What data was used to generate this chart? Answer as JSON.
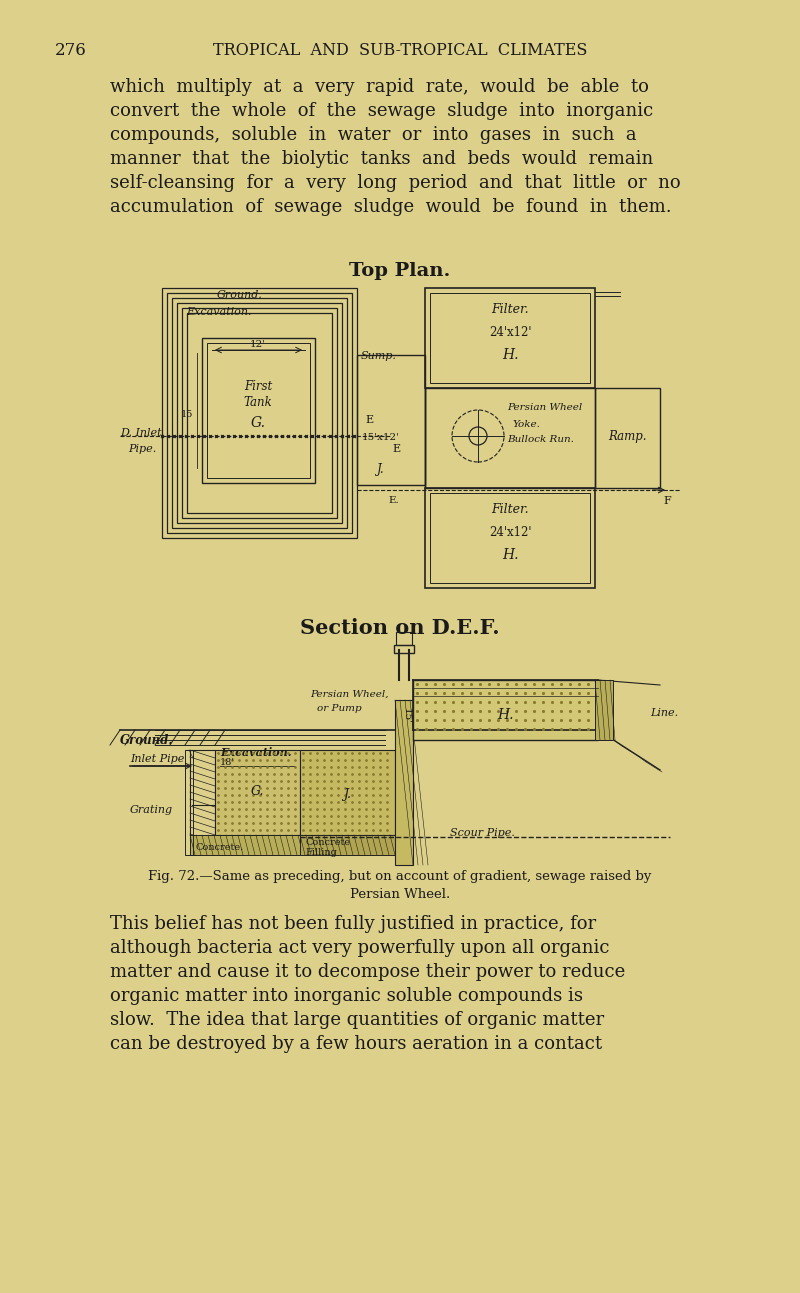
{
  "page_bg": "#ddd08a",
  "text_color": "#1a1a1a",
  "line_color": "#222222",
  "page_number": "276",
  "header": "TROPICAL  AND  SUB-TROPICAL  CLIMATES",
  "para1_lines": [
    "which  multiply  at  a  very  rapid  rate,  would  be  able  to",
    "convert  the  whole  of  the  sewage  sludge  into  inorganic",
    "compounds,  soluble  in  water  or  into  gases  in  such  a",
    "manner  that  the  biolytic  tanks  and  beds  would  remain",
    "self-cleansing  for  a  very  long  period  and  that  little  or  no",
    "accumulation  of  sewage  sludge  would  be  found  in  them."
  ],
  "top_plan_title": "Top Plan.",
  "section_title": "Section on D.E.F.",
  "fig_caption_line1": "Fig. 72.—Same as preceding, but on account of gradient, sewage raised by",
  "fig_caption_line2": "Persian Wheel.",
  "para2_lines": [
    "This belief has not been fully justified in practice, for",
    "although bacteria act very powerfully upon all organic",
    "matter and cause it to decompose their power to reduce",
    "organic matter into inorganic soluble compounds is",
    "slow.  The idea that large quantities of organic matter",
    "can be destroyed by a few hours aeration in a contact"
  ]
}
